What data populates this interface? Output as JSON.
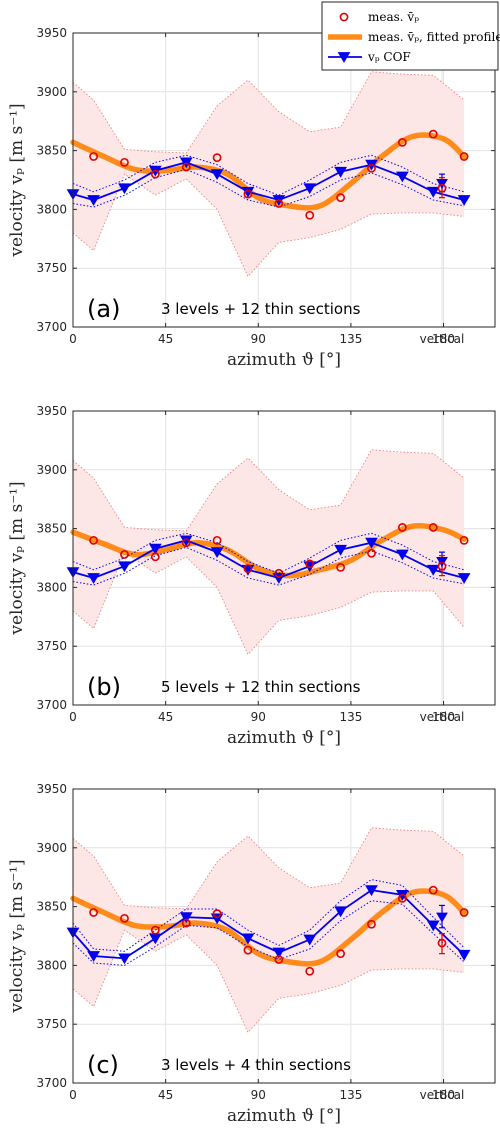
{
  "legend": {
    "position": "top-right",
    "entries": [
      {
        "label": "meas. v̄ₚ",
        "style": "red-circle"
      },
      {
        "label": "meas. v̄ₚ, fitted profile",
        "style": "orange-line"
      },
      {
        "label": "vₚ COF",
        "style": "blue-line-triangle"
      }
    ]
  },
  "colors": {
    "measured": "#e00000",
    "band_fill": "#fde6e6",
    "band_edge": "#f08080",
    "fit": "#ff8c1a",
    "cof": "#0000ee",
    "grid": "#e3e3e3",
    "axis": "#262626"
  },
  "chart_data": [
    {
      "type": "line",
      "panel_label": "(a)",
      "annotation": "3 levels + 12 thin sections",
      "xlabel": "azimuth ϑ [°]",
      "ylabel": "velocity vₚ [m s⁻¹]",
      "xlim": [
        0,
        205
      ],
      "ylim": [
        3700,
        3950
      ],
      "xticks": [
        0,
        45,
        90,
        135,
        180
      ],
      "extra_xtick": "vertical",
      "yticks": [
        3700,
        3750,
        3800,
        3850,
        3900,
        3950
      ],
      "grid": true,
      "series": [
        {
          "name": "meas. v̄ₚ",
          "x": [
            10,
            25,
            40,
            55,
            70,
            85,
            100,
            115,
            130,
            145,
            160,
            175,
            190
          ],
          "values": [
            3845,
            3840,
            3830,
            3836,
            3844,
            3813,
            3805,
            3795,
            3810,
            3835,
            3857,
            3864,
            3845
          ]
        },
        {
          "name": "meas. v̄ₚ upper",
          "x": [
            0,
            10,
            25,
            40,
            55,
            70,
            85,
            100,
            115,
            130,
            145,
            160,
            175,
            190
          ],
          "values": [
            3908,
            3893,
            3851,
            3849,
            3848,
            3888,
            3910,
            3883,
            3866,
            3870,
            3917,
            3915,
            3914,
            3893
          ]
        },
        {
          "name": "meas. v̄ₚ lower",
          "x": [
            0,
            10,
            25,
            40,
            55,
            70,
            85,
            100,
            115,
            130,
            145,
            160,
            175,
            190
          ],
          "values": [
            3780,
            3765,
            3830,
            3812,
            3826,
            3800,
            3743,
            3772,
            3776,
            3783,
            3796,
            3797,
            3797,
            3794
          ]
        },
        {
          "name": "meas. v̄ₚ, fitted profile",
          "x": [
            0,
            15,
            30,
            45,
            60,
            75,
            90,
            105,
            120,
            135,
            150,
            165,
            180,
            190
          ],
          "values": [
            3857,
            3845,
            3834,
            3833,
            3836,
            3830,
            3810,
            3803,
            3803,
            3822,
            3845,
            3862,
            3860,
            3845
          ]
        },
        {
          "name": "vₚ COF",
          "x": [
            0,
            10,
            25,
            40,
            55,
            70,
            85,
            100,
            115,
            130,
            145,
            160,
            175,
            190
          ],
          "values": [
            3813,
            3808,
            3818,
            3833,
            3840,
            3830,
            3815,
            3808,
            3818,
            3832,
            3838,
            3828,
            3815,
            3808
          ]
        },
        {
          "name": "vₚ COF upper",
          "x": [
            0,
            10,
            25,
            40,
            55,
            70,
            85,
            100,
            115,
            130,
            145,
            160,
            175,
            190
          ],
          "values": [
            3822,
            3815,
            3825,
            3840,
            3846,
            3838,
            3822,
            3812,
            3825,
            3840,
            3846,
            3836,
            3822,
            3815
          ]
        },
        {
          "name": "vₚ COF lower",
          "x": [
            0,
            10,
            25,
            40,
            55,
            70,
            85,
            100,
            115,
            130,
            145,
            160,
            175,
            190
          ],
          "values": [
            3805,
            3802,
            3812,
            3827,
            3834,
            3823,
            3808,
            3802,
            3811,
            3825,
            3831,
            3821,
            3808,
            3803
          ]
        }
      ],
      "vertical": {
        "measured": 3818,
        "measured_err": [
          3810,
          3827
        ],
        "cof": 3822,
        "cof_err": [
          3815,
          3830
        ]
      }
    },
    {
      "type": "line",
      "panel_label": "(b)",
      "annotation": "5 levels + 12 thin sections",
      "xlabel": "azimuth ϑ [°]",
      "ylabel": "velocity vₚ [m s⁻¹]",
      "xlim": [
        0,
        205
      ],
      "ylim": [
        3700,
        3950
      ],
      "xticks": [
        0,
        45,
        90,
        135,
        180
      ],
      "extra_xtick": "vertical",
      "yticks": [
        3700,
        3750,
        3800,
        3850,
        3900,
        3950
      ],
      "grid": true,
      "series": [
        {
          "name": "meas. v̄ₚ",
          "x": [
            10,
            25,
            40,
            55,
            70,
            85,
            100,
            115,
            130,
            145,
            160,
            175,
            190
          ],
          "values": [
            3840,
            3828,
            3826,
            3838,
            3840,
            3816,
            3812,
            3820,
            3817,
            3829,
            3851,
            3851,
            3840
          ]
        },
        {
          "name": "meas. v̄ₚ upper",
          "x": [
            0,
            10,
            25,
            40,
            55,
            70,
            85,
            100,
            115,
            130,
            145,
            160,
            175,
            190
          ],
          "values": [
            3908,
            3893,
            3851,
            3849,
            3848,
            3888,
            3910,
            3883,
            3866,
            3870,
            3917,
            3915,
            3914,
            3893
          ]
        },
        {
          "name": "meas. v̄ₚ lower",
          "x": [
            0,
            10,
            25,
            40,
            55,
            70,
            85,
            100,
            115,
            130,
            145,
            160,
            175,
            190
          ],
          "values": [
            3780,
            3765,
            3830,
            3812,
            3826,
            3800,
            3743,
            3772,
            3776,
            3783,
            3796,
            3797,
            3797,
            3766
          ]
        },
        {
          "name": "meas. v̄ₚ, fitted profile",
          "x": [
            0,
            15,
            30,
            45,
            60,
            75,
            90,
            105,
            120,
            135,
            150,
            165,
            180,
            190
          ],
          "values": [
            3847,
            3837,
            3828,
            3832,
            3838,
            3832,
            3816,
            3810,
            3815,
            3823,
            3840,
            3852,
            3849,
            3841
          ]
        },
        {
          "name": "vₚ COF",
          "x": [
            0,
            10,
            25,
            40,
            55,
            70,
            85,
            100,
            115,
            130,
            145,
            160,
            175,
            190
          ],
          "values": [
            3813,
            3808,
            3818,
            3833,
            3840,
            3830,
            3815,
            3808,
            3818,
            3832,
            3838,
            3828,
            3815,
            3808
          ]
        },
        {
          "name": "vₚ COF upper",
          "x": [
            0,
            10,
            25,
            40,
            55,
            70,
            85,
            100,
            115,
            130,
            145,
            160,
            175,
            190
          ],
          "values": [
            3822,
            3815,
            3825,
            3840,
            3846,
            3838,
            3822,
            3812,
            3825,
            3840,
            3846,
            3836,
            3822,
            3815
          ]
        },
        {
          "name": "vₚ COF lower",
          "x": [
            0,
            10,
            25,
            40,
            55,
            70,
            85,
            100,
            115,
            130,
            145,
            160,
            175,
            190
          ],
          "values": [
            3805,
            3802,
            3812,
            3827,
            3834,
            3823,
            3808,
            3802,
            3811,
            3825,
            3831,
            3821,
            3808,
            3803
          ]
        }
      ],
      "vertical": {
        "measured": 3818,
        "measured_err": [
          3810,
          3827
        ],
        "cof": 3822,
        "cof_err": [
          3815,
          3830
        ]
      }
    },
    {
      "type": "line",
      "panel_label": "(c)",
      "annotation": "3 levels + 4 thin sections",
      "xlabel": "azimuth ϑ [°]",
      "ylabel": "velocity vₚ [m s⁻¹]",
      "xlim": [
        0,
        205
      ],
      "ylim": [
        3700,
        3950
      ],
      "xticks": [
        0,
        45,
        90,
        135,
        180
      ],
      "extra_xtick": "vertical",
      "yticks": [
        3700,
        3750,
        3800,
        3850,
        3900,
        3950
      ],
      "grid": true,
      "series": [
        {
          "name": "meas. v̄ₚ",
          "x": [
            10,
            25,
            40,
            55,
            70,
            85,
            100,
            115,
            130,
            145,
            160,
            175,
            190
          ],
          "values": [
            3845,
            3840,
            3830,
            3836,
            3844,
            3813,
            3805,
            3795,
            3810,
            3835,
            3857,
            3864,
            3845
          ]
        },
        {
          "name": "meas. v̄ₚ upper",
          "x": [
            0,
            10,
            25,
            40,
            55,
            70,
            85,
            100,
            115,
            130,
            145,
            160,
            175,
            190
          ],
          "values": [
            3908,
            3893,
            3851,
            3849,
            3848,
            3888,
            3910,
            3883,
            3866,
            3870,
            3917,
            3915,
            3914,
            3893
          ]
        },
        {
          "name": "meas. v̄ₚ lower",
          "x": [
            0,
            10,
            25,
            40,
            55,
            70,
            85,
            100,
            115,
            130,
            145,
            160,
            175,
            190
          ],
          "values": [
            3780,
            3765,
            3830,
            3812,
            3826,
            3800,
            3743,
            3772,
            3776,
            3783,
            3796,
            3797,
            3797,
            3794
          ]
        },
        {
          "name": "meas. v̄ₚ, fitted profile",
          "x": [
            0,
            15,
            30,
            45,
            60,
            75,
            90,
            105,
            120,
            135,
            150,
            165,
            180,
            190
          ],
          "values": [
            3857,
            3845,
            3834,
            3833,
            3836,
            3830,
            3810,
            3803,
            3803,
            3822,
            3845,
            3862,
            3860,
            3845
          ]
        },
        {
          "name": "vₚ COF",
          "x": [
            0,
            10,
            25,
            40,
            55,
            70,
            85,
            100,
            115,
            130,
            145,
            160,
            175,
            190
          ],
          "values": [
            3828,
            3808,
            3806,
            3823,
            3841,
            3840,
            3823,
            3811,
            3822,
            3846,
            3864,
            3860,
            3834,
            3809
          ]
        },
        {
          "name": "vₚ COF upper",
          "x": [
            0,
            10,
            25,
            40,
            55,
            70,
            85,
            100,
            115,
            130,
            145,
            160,
            175,
            190
          ],
          "values": [
            3836,
            3814,
            3812,
            3830,
            3848,
            3848,
            3830,
            3817,
            3830,
            3855,
            3873,
            3868,
            3841,
            3815
          ]
        },
        {
          "name": "vₚ COF lower",
          "x": [
            0,
            10,
            25,
            40,
            55,
            70,
            85,
            100,
            115,
            130,
            145,
            160,
            175,
            190
          ],
          "values": [
            3819,
            3802,
            3800,
            3816,
            3834,
            3832,
            3816,
            3805,
            3814,
            3838,
            3855,
            3852,
            3827,
            3803
          ]
        }
      ],
      "vertical": {
        "measured": 3819,
        "measured_err": [
          3810,
          3827
        ],
        "cof": 3841,
        "cof_err": [
          3832,
          3851
        ]
      }
    }
  ]
}
